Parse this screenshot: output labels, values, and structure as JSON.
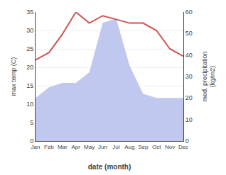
{
  "chart_data": {
    "type": "line",
    "categories": [
      "Jan",
      "Feb",
      "Mar",
      "Apr",
      "May",
      "Jun",
      "Jul",
      "Aug",
      "Sep",
      "Oct",
      "Nov",
      "Dec"
    ],
    "series": [
      {
        "type": "area",
        "axis": "y2",
        "color": "#c0c8f0",
        "values": [
          20,
          25,
          27,
          27,
          32,
          55,
          57,
          35,
          22,
          20,
          20,
          20
        ]
      },
      {
        "type": "line",
        "color": "#cc5555",
        "values": [
          22,
          24,
          29,
          35,
          32,
          34,
          33,
          32,
          32,
          30,
          25,
          23
        ]
      }
    ],
    "xlabel": "date (month)",
    "ylabel": "max temp (C)",
    "y2label": "med. precipitation\n(kg/m2)",
    "ylim": [
      0,
      35
    ],
    "yticks": [
      0,
      5,
      10,
      15,
      20,
      25,
      30,
      35
    ],
    "y2lim": [
      0,
      60
    ],
    "y2ticks": [
      0,
      10,
      20,
      30,
      40,
      50,
      60
    ],
    "grid": true
  }
}
